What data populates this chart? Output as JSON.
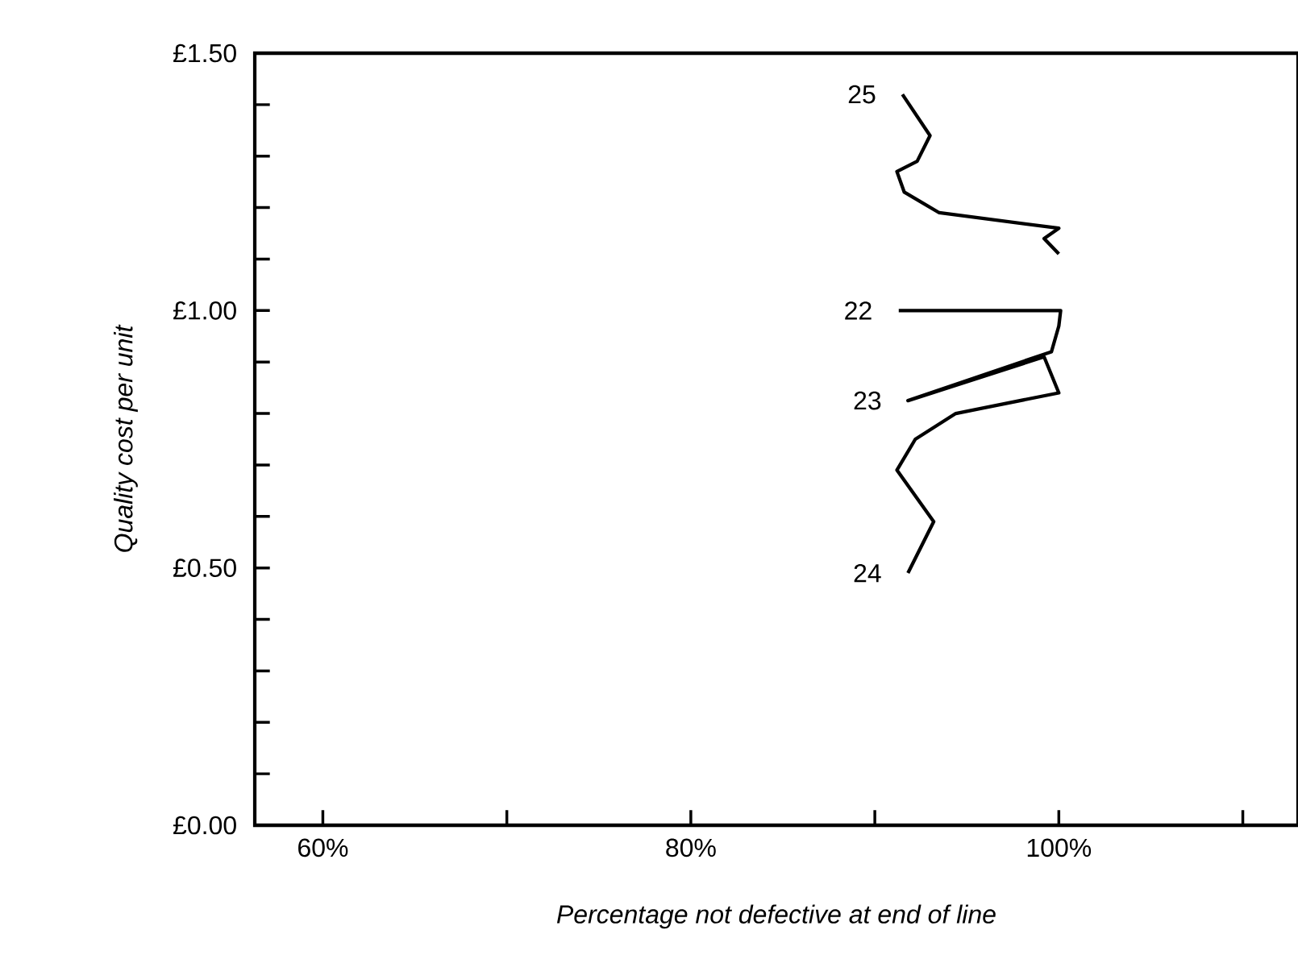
{
  "chart_data": {
    "type": "line",
    "xlabel": "Percentage not defective at end of line",
    "ylabel": "Quality cost per unit",
    "xlim": [
      56.3,
      113
    ],
    "ylim": [
      0,
      1.5
    ],
    "xticks": [
      {
        "value": 60,
        "label": "60%"
      },
      {
        "value": 70,
        "label": null
      },
      {
        "value": 80,
        "label": "80%"
      },
      {
        "value": 90,
        "label": null
      },
      {
        "value": 100,
        "label": "100%"
      },
      {
        "value": 110,
        "label": null
      }
    ],
    "yticks": [
      {
        "value": 0,
        "label": "£0.00"
      },
      {
        "value": 0.1,
        "label": null
      },
      {
        "value": 0.2,
        "label": null
      },
      {
        "value": 0.3,
        "label": null
      },
      {
        "value": 0.4,
        "label": null
      },
      {
        "value": 0.5,
        "label": "£0.50"
      },
      {
        "value": 0.6,
        "label": null
      },
      {
        "value": 0.7,
        "label": null
      },
      {
        "value": 0.8,
        "label": null
      },
      {
        "value": 0.9,
        "label": null
      },
      {
        "value": 1.0,
        "label": "£1.00"
      },
      {
        "value": 1.1,
        "label": null
      },
      {
        "value": 1.2,
        "label": null
      },
      {
        "value": 1.3,
        "label": null
      },
      {
        "value": 1.4,
        "label": null
      },
      {
        "value": 1.5,
        "label": "£1.50"
      }
    ],
    "series": [
      {
        "color": "#000000",
        "x": [
          91.3,
          100.1,
          100,
          99.6,
          91.8,
          99.2,
          100,
          94.4,
          92.2,
          91.2,
          93.2,
          91.8
        ],
        "values": [
          1.0,
          1.0,
          0.97,
          0.92,
          0.825,
          0.91,
          0.84,
          0.8,
          0.75,
          0.69,
          0.59,
          0.49
        ]
      },
      {
        "color": "#000000",
        "x": [
          100,
          99.2,
          100,
          93.5,
          91.6,
          91.2,
          92.3,
          93.0,
          91.5
        ],
        "values": [
          1.11,
          1.14,
          1.16,
          1.19,
          1.23,
          1.27,
          1.29,
          1.34,
          1.42
        ]
      }
    ],
    "annotations": [
      {
        "text": "22",
        "x": 91.3,
        "y": 1.0
      },
      {
        "text": "23",
        "x": 91.8,
        "y": 0.825
      },
      {
        "text": "24",
        "x": 91.8,
        "y": 0.49
      },
      {
        "text": "25",
        "x": 91.5,
        "y": 1.42
      }
    ]
  }
}
